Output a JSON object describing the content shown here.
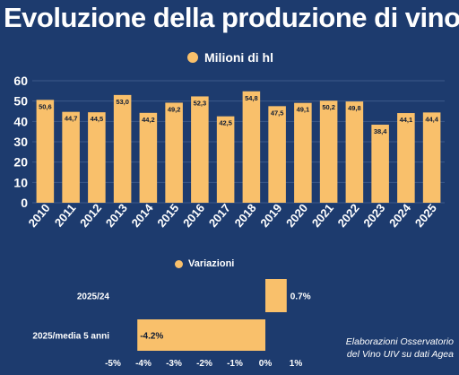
{
  "colors": {
    "background": "#1d3b6e",
    "bar": "#f9c06b",
    "text": "#ffffff",
    "grid": "#3d5a8a",
    "label": "#0d1a33"
  },
  "chart_data": [
    {
      "type": "bar",
      "title": "Evoluzione della produzione di vino",
      "legend": "Milioni di hl",
      "legend_position": "top",
      "categories": [
        "2010",
        "2011",
        "2012",
        "2013",
        "2014",
        "2015",
        "2016",
        "2017",
        "2018",
        "2019",
        "2020",
        "2021",
        "2022",
        "2023",
        "2024",
        "2025"
      ],
      "values": [
        50.6,
        44.7,
        44.5,
        53.0,
        44.2,
        49.2,
        52.3,
        42.5,
        54.8,
        47.5,
        49.1,
        50.2,
        49.8,
        38.4,
        44.1,
        44.4
      ],
      "value_labels": [
        "50,6",
        "44,7",
        "44,5",
        "53,0",
        "44,2",
        "49,2",
        "52,3",
        "42,5",
        "54,8",
        "47,5",
        "49,1",
        "50,2",
        "49,8",
        "38,4",
        "44,1",
        "44,4"
      ],
      "yticks": [
        "0",
        "10",
        "20",
        "30",
        "40",
        "50",
        "60"
      ],
      "ylim": [
        0,
        60
      ],
      "grid": true
    },
    {
      "type": "bar",
      "orientation": "horizontal",
      "legend": "Variazioni",
      "legend_position": "top",
      "categories": [
        "2025/24",
        "2025/media 5 anni"
      ],
      "values": [
        0.7,
        -4.2
      ],
      "value_labels": [
        "0.7%",
        "-4.2%"
      ],
      "xticks": [
        "-5%",
        "-4%",
        "-3%",
        "-2%",
        "-1%",
        "0%",
        "1%"
      ],
      "xlim": [
        -5,
        1
      ],
      "grid": false
    }
  ],
  "credit": {
    "line1": "Elaborazioni Osservatorio",
    "line2": "del Vino UIV su dati Agea"
  }
}
